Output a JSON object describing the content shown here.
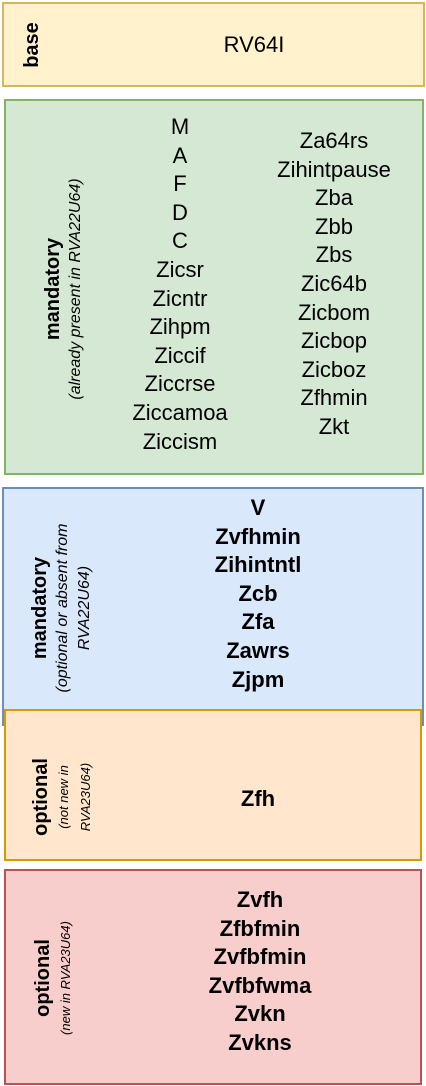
{
  "sections": {
    "base": {
      "title": "base",
      "items": [
        "RV64I"
      ],
      "fill": "#fff2cc",
      "stroke": "#d6b656"
    },
    "mandatory_present": {
      "title": "mandatory",
      "subtitle": "(already present in RVA22U64)",
      "col1": [
        "M",
        "A",
        "F",
        "D",
        "C",
        "Zicsr",
        "Zicntr",
        "Zihpm",
        "Ziccif",
        "Ziccrse",
        "Ziccamoa",
        "Ziccism"
      ],
      "col2": [
        "Za64rs",
        "Zihintpause",
        "Zba",
        "Zbb",
        "Zbs",
        "Zic64b",
        "Zicbom",
        "Zicbop",
        "Zicboz",
        "Zfhmin",
        "Zkt"
      ],
      "fill": "#d5e8d4",
      "stroke": "#82b366"
    },
    "mandatory_new": {
      "title": "mandatory",
      "subtitle_line1": "(optional or absent from",
      "subtitle_line2": "RVA22U64)",
      "items": [
        "V",
        "Zvfhmin",
        "Zihintntl",
        "Zcb",
        "Zfa",
        "Zawrs",
        "Zjpm"
      ],
      "fill": "#dae8fc",
      "stroke": "#6c8ebf"
    },
    "optional_not_new": {
      "title": "optional",
      "subtitle_line1": "(not new in",
      "subtitle_line2": "RVA23U64)",
      "items": [
        "Zfh"
      ],
      "fill": "#ffe6cc",
      "stroke": "#d79b00"
    },
    "optional_new": {
      "title": "optional",
      "subtitle": "(new in RVA23U64)",
      "items": [
        "Zvfh",
        "Zfbfmin",
        "Zvfbfmin",
        "Zvfbfwma",
        "Zvkn",
        "Zvkns"
      ],
      "fill": "#f8cecc",
      "stroke": "#b85450"
    }
  }
}
